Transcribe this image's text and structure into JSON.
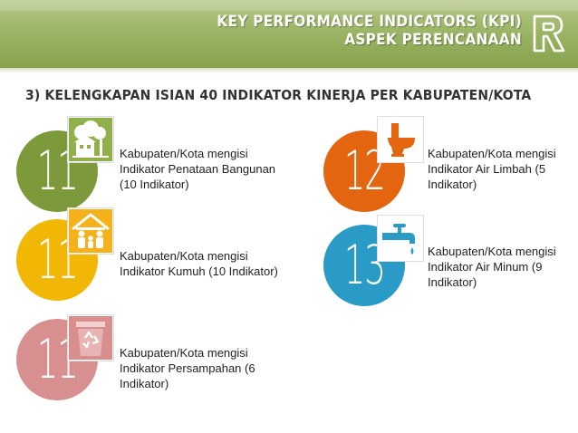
{
  "header": {
    "title_line1": "KEY PERFORMANCE  INDICATORS (KPI)",
    "title_line2": "ASPEK PERENCANAAN"
  },
  "section": {
    "title": "3) KELENGKAPAN ISIAN 40 INDIKATOR KINERJA PER KABUPATEN/KOTA"
  },
  "items": [
    {
      "number": "11",
      "color": "#7d9a3a",
      "icon": "building-trees-icon",
      "line1": "Kabupaten/Kota mengisi",
      "line2": "Indikator   Penataan Bangunan",
      "line3": "(10 Indikator)"
    },
    {
      "number": "11",
      "color": "#f2b705",
      "icon": "family-house-icon",
      "line1": "Kabupaten/Kota mengisi",
      "line2": "Indikator  Kumuh (10 Indikator)",
      "line3": ""
    },
    {
      "number": "11",
      "color": "#d88f8f",
      "icon": "recycle-bin-icon",
      "line1": "Kabupaten/Kota mengisi",
      "line2": "Indikator   Persampahan (6",
      "line3": "Indikator)"
    },
    {
      "number": "12",
      "color": "#e3650f",
      "icon": "toilet-icon",
      "line1": "Kabupaten/Kota mengisi",
      "line2": "Indikator   Air Limbah (5",
      "line3": "Indikator)"
    },
    {
      "number": "13",
      "color": "#2a9bc6",
      "icon": "water-tap-icon",
      "line1": "Kabupaten/Kota mengisi",
      "line2": "Indikator Air Minum (9",
      "line3": "Indikator)"
    }
  ]
}
